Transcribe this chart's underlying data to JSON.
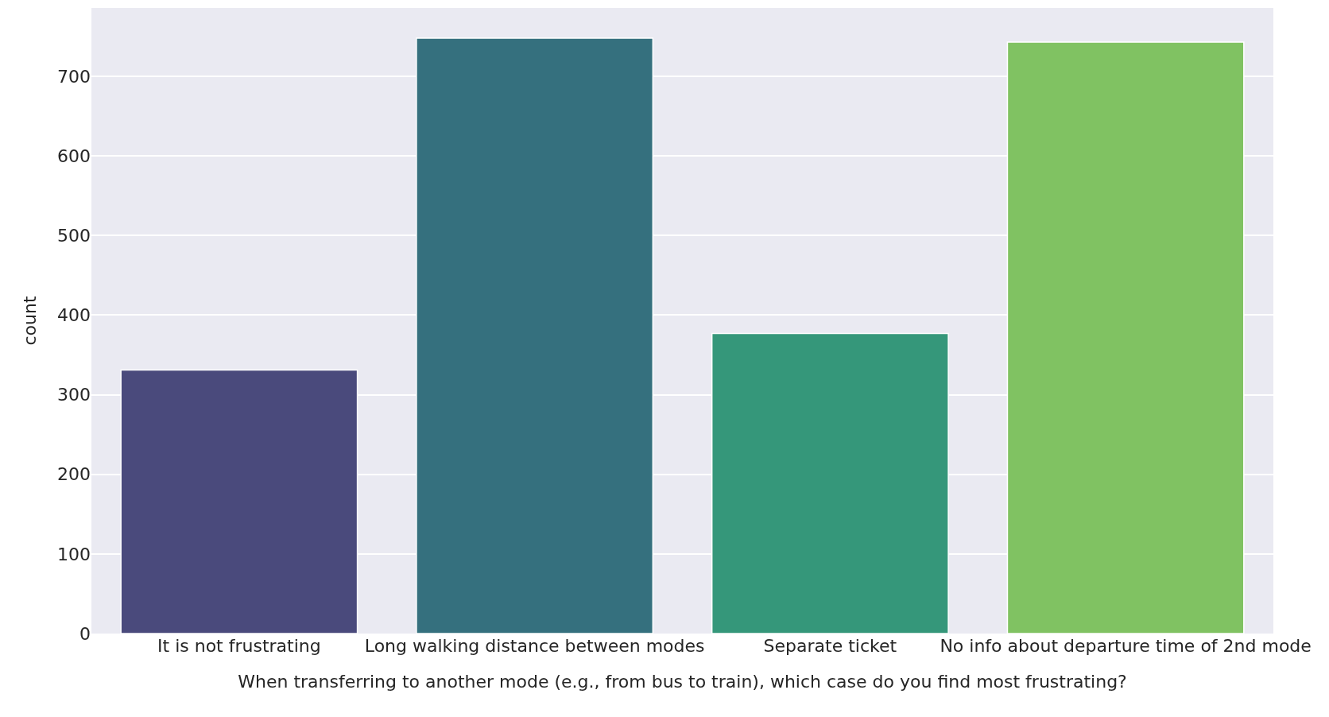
{
  "chart_data": {
    "type": "bar",
    "xlabel": "When transferring to another mode (e.g., from bus to train), which case do you find most frustrating?",
    "ylabel": "count",
    "categories": [
      "It is not frustrating",
      "Long walking distance between modes",
      "Separate ticket",
      "No info about departure time of 2nd mode"
    ],
    "values": [
      331,
      748,
      377,
      743
    ],
    "colors": [
      "#4a4a7c",
      "#35707e",
      "#35977a",
      "#80c262"
    ],
    "ylim": [
      0,
      786
    ],
    "yticks": [
      0,
      100,
      200,
      300,
      400,
      500,
      600,
      700
    ],
    "grid": "y"
  }
}
